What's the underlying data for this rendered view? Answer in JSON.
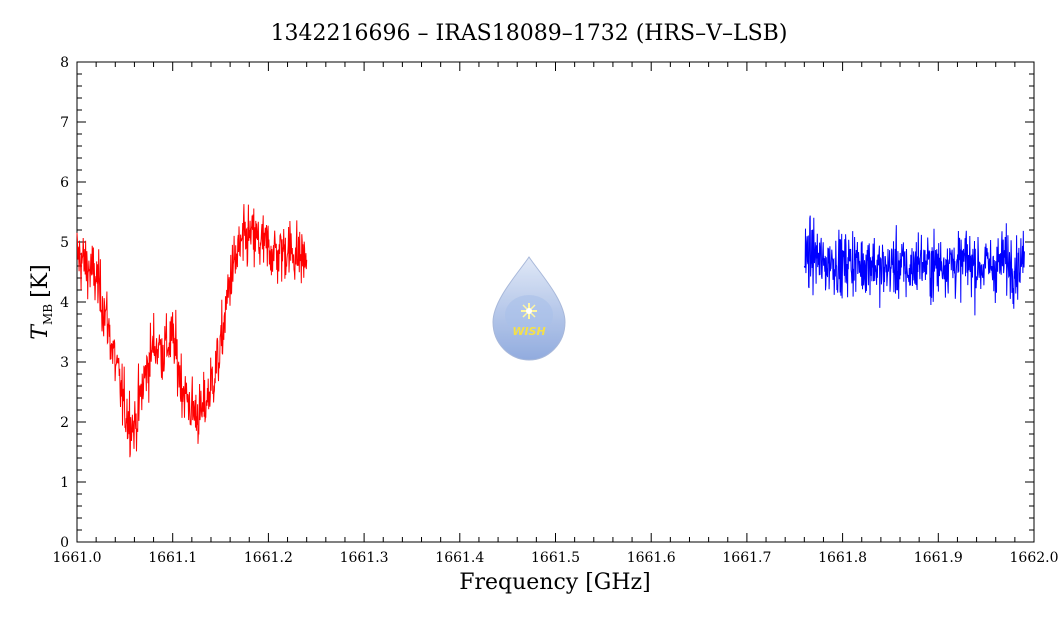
{
  "chart_data": {
    "type": "line",
    "title": "1342216696 – IRAS18089–1732 (HRS–V–LSB)",
    "xlabel": "Frequency [GHz]",
    "ylabel": "T",
    "ylabel_subscript": "MB",
    "ylabel_unit": "[K]",
    "xlim": [
      1661.0,
      1662.0
    ],
    "ylim": [
      0,
      8
    ],
    "x_ticks": [
      1661.0,
      1661.1,
      1661.2,
      1661.3,
      1661.4,
      1661.5,
      1661.6,
      1661.7,
      1661.8,
      1661.9,
      1662.0
    ],
    "x_tick_labels": [
      "1661.0",
      "1661.1",
      "1661.2",
      "1661.3",
      "1661.4",
      "1661.5",
      "1661.6",
      "1661.7",
      "1661.8",
      "1661.9",
      "1662.0"
    ],
    "y_ticks": [
      0,
      1,
      2,
      3,
      4,
      5,
      6,
      7,
      8
    ],
    "y_tick_labels": [
      "0",
      "1",
      "2",
      "3",
      "4",
      "5",
      "6",
      "7",
      "8"
    ],
    "grid": false,
    "series": [
      {
        "color": "#ff0000",
        "x": [
          1661.0,
          1661.01,
          1661.02,
          1661.03,
          1661.04,
          1661.05,
          1661.06,
          1661.07,
          1661.08,
          1661.09,
          1661.1,
          1661.11,
          1661.12,
          1661.13,
          1661.14,
          1661.15,
          1661.16,
          1661.17,
          1661.18,
          1661.19,
          1661.2,
          1661.21,
          1661.22,
          1661.23,
          1661.24
        ],
        "y": [
          4.8,
          4.6,
          4.4,
          3.8,
          3.0,
          2.2,
          1.9,
          2.7,
          3.3,
          3.2,
          3.4,
          2.6,
          2.2,
          2.1,
          2.6,
          3.2,
          4.4,
          4.9,
          5.1,
          5.0,
          4.9,
          4.8,
          4.9,
          4.8,
          4.7
        ]
      },
      {
        "color": "#0000ff",
        "x": [
          1661.76,
          1661.77,
          1661.78,
          1661.79,
          1661.8,
          1661.81,
          1661.82,
          1661.83,
          1661.84,
          1661.85,
          1661.86,
          1661.87,
          1661.88,
          1661.89,
          1661.9,
          1661.91,
          1661.92,
          1661.93,
          1661.94,
          1661.95,
          1661.96,
          1661.97,
          1661.98,
          1661.99
        ],
        "y": [
          4.7,
          4.8,
          4.6,
          4.7,
          4.6,
          4.7,
          4.6,
          4.7,
          4.5,
          4.6,
          4.6,
          4.5,
          4.7,
          4.6,
          4.6,
          4.7,
          4.6,
          4.7,
          4.6,
          4.6,
          4.6,
          4.7,
          4.6,
          4.7
        ]
      }
    ]
  },
  "logo": {
    "text": "WISH",
    "colors": {
      "drop_top": "#c9d6ee",
      "drop_bottom": "#7d9bd6",
      "star": "#fff6a0"
    }
  }
}
